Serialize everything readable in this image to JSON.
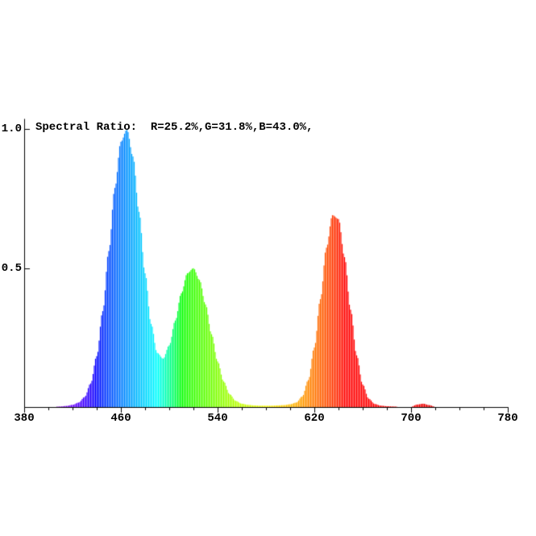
{
  "chart_data": {
    "type": "area",
    "title": "",
    "xlabel": "",
    "ylabel": "",
    "annotation": "Spectral Ratio:  R=25.2%,G=31.8%,B=43.0%,",
    "spectral_ratio": {
      "R_pct": 25.2,
      "G_pct": 31.8,
      "B_pct": 43.0
    },
    "xlim": [
      380,
      780
    ],
    "ylim": [
      0,
      1.0
    ],
    "grid": false,
    "legend": "none",
    "color_mode": "visible-spectrum-by-wavelength",
    "x_ticks": [
      {
        "value": 380,
        "label": "380"
      },
      {
        "value": 460,
        "label": "460"
      },
      {
        "value": 540,
        "label": "540"
      },
      {
        "value": 620,
        "label": "620"
      },
      {
        "value": 700,
        "label": "700"
      },
      {
        "value": 780,
        "label": "780"
      }
    ],
    "x_minor_tick_step": 20,
    "y_ticks": [
      {
        "value": 1.0,
        "label": "1.0"
      },
      {
        "value": 0.5,
        "label": "0.5"
      }
    ],
    "peaks": [
      {
        "wavelength_nm": 465,
        "relative_intensity": 1.0,
        "band": "blue"
      },
      {
        "wavelength_nm": 520,
        "relative_intensity": 0.5,
        "band": "green"
      },
      {
        "wavelength_nm": 637,
        "relative_intensity": 0.69,
        "band": "red"
      }
    ],
    "x_start": 380,
    "x_step": 5,
    "values": [
      0,
      0,
      0,
      0,
      0.001,
      0.001,
      0.002,
      0.004,
      0.008,
      0.016,
      0.036,
      0.085,
      0.183,
      0.345,
      0.561,
      0.788,
      0.954,
      0.998,
      0.901,
      0.702,
      0.481,
      0.299,
      0.195,
      0.174,
      0.222,
      0.311,
      0.409,
      0.481,
      0.499,
      0.457,
      0.369,
      0.262,
      0.164,
      0.092,
      0.046,
      0.022,
      0.012,
      0.008,
      0.006,
      0.005,
      0.005,
      0.005,
      0.006,
      0.007,
      0.01,
      0.016,
      0.038,
      0.097,
      0.214,
      0.388,
      0.573,
      0.69,
      0.676,
      0.539,
      0.35,
      0.186,
      0.081,
      0.03,
      0.011,
      0.005,
      0.003,
      0.002,
      0.001,
      0.001,
      0.001,
      0.009,
      0.012,
      0.007,
      0.001,
      0,
      0,
      0,
      0,
      0,
      0,
      0,
      0,
      0,
      0,
      0,
      0
    ]
  }
}
